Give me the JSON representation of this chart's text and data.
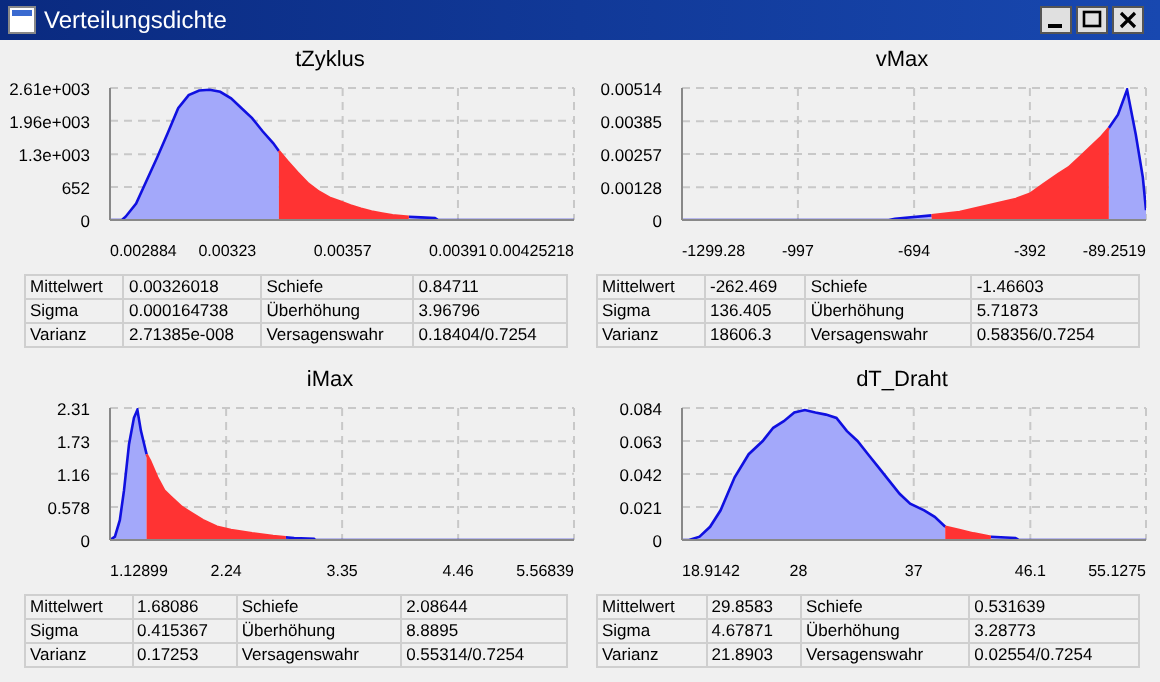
{
  "chart_data": [
    {
      "type": "other",
      "title": "Verteilungsdichte"
    },
    {
      "type": "area",
      "title": "tZyklus",
      "grid": true,
      "x": [
        0.002884,
        0.002919,
        0.00293,
        0.002961,
        0.002992,
        0.003023,
        0.003054,
        0.003085,
        0.003116,
        0.003147,
        0.003178,
        0.003209,
        0.003241,
        0.003272,
        0.003303,
        0.003334,
        0.003365,
        0.003382,
        0.003406,
        0.003437,
        0.003469,
        0.0035,
        0.003531,
        0.003562,
        0.003593,
        0.003624,
        0.003655,
        0.003686,
        0.003717,
        0.003765,
        0.0038,
        0.003842,
        0.003852,
        0.00425218
      ],
      "series": [
        {
          "color": "#a3a8fa",
          "values": [
            0,
            0,
            65,
            325,
            780,
            1235,
            1716,
            2210,
            2470,
            2560,
            2574,
            2535,
            2405,
            2210,
            2015,
            1755,
            1521,
            1365,
            null,
            null,
            null,
            null,
            null,
            null,
            null,
            null,
            null,
            null,
            null,
            65,
            52,
            39,
            0,
            0
          ]
        },
        {
          "color": "#ff3333",
          "values": [
            null,
            null,
            null,
            null,
            null,
            null,
            null,
            null,
            null,
            null,
            null,
            null,
            null,
            null,
            null,
            null,
            null,
            1365,
            1170,
            936,
            715,
            559,
            442,
            364,
            286,
            221,
            169,
            130,
            91,
            65,
            null,
            null,
            null,
            null
          ]
        }
      ],
      "xlim": [
        0.002884,
        0.00425218
      ],
      "xticks": [
        0.002884,
        0.00323,
        0.00357,
        0.00391,
        0.00425218
      ],
      "ylim": [
        0,
        2610
      ],
      "yticks": [
        0,
        652,
        {
          "value": 1300,
          "label": "1.3e+003"
        },
        {
          "value": 1960,
          "label": "1.96e+003"
        },
        {
          "value": 2610,
          "label": "2.61e+003"
        }
      ],
      "annotations": [
        "Mittelwert",
        "0.00326018",
        "Schiefe",
        "0.84711",
        "Sigma",
        "0.000164738",
        "Überhöhung",
        "3.96796",
        "Varianz",
        "2.71385e-008",
        "Versagenswahr",
        "0.18404/0.7254"
      ]
    },
    {
      "type": "area",
      "title": "vMax",
      "grid": true,
      "x": [
        -1299.28,
        -760,
        -743.7,
        -648.4,
        -575.0,
        -501.7,
        -428.3,
        -391.6,
        -355.0,
        -318.3,
        -290.8,
        -263.3,
        -235.8,
        -208.2,
        -186.2,
        -162.4,
        -138.6,
        -115.9,
        -97.5,
        -89.2519
      ],
      "series": [
        {
          "color": "#a3a8fa",
          "values": [
            0,
            0,
            5e-05,
            0.00018,
            null,
            null,
            null,
            null,
            null,
            null,
            null,
            null,
            null,
            null,
            0.00358,
            0.0041,
            0.00507,
            0.00333,
            0.00166,
            0.00038
          ]
        },
        {
          "color": "#ff3333",
          "values": [
            null,
            null,
            null,
            0.00018,
            0.00031,
            0.00056,
            0.00082,
            0.00102,
            0.00141,
            0.00179,
            0.00205,
            0.00243,
            0.00282,
            0.0032,
            0.00358,
            null,
            null,
            null,
            null,
            null
          ]
        }
      ],
      "xlim": [
        -1299.28,
        -89.2519
      ],
      "xticks": [
        -1299.28,
        -997,
        -694,
        -392,
        -89.2519
      ],
      "ylim": [
        0,
        0.00514
      ],
      "yticks": [
        0,
        0.00128,
        0.00257,
        0.00385,
        0.00514
      ],
      "annotations": [
        "Mittelwert",
        "-262.469",
        "Schiefe",
        "-1.46603",
        "Sigma",
        "136.405",
        "Überhöhung",
        "5.71873",
        "Varianz",
        "18606.3",
        "Versagenswahr",
        "0.58356/0.7254"
      ]
    },
    {
      "type": "area",
      "title": "iMax",
      "grid": true,
      "x": [
        1.12899,
        1.176,
        1.223,
        1.263,
        1.311,
        1.358,
        1.391,
        1.425,
        1.479,
        1.512,
        1.58,
        1.647,
        1.714,
        1.815,
        1.916,
        2.017,
        2.151,
        2.286,
        2.488,
        2.689,
        2.811,
        2.891,
        3.08,
        3.093,
        5.56839
      ],
      "series": [
        {
          "color": "#a3a8fa",
          "values": [
            0,
            0.058,
            0.347,
            0.867,
            1.676,
            2.139,
            2.277,
            1.91,
            1.5,
            null,
            null,
            null,
            null,
            null,
            null,
            null,
            null,
            null,
            null,
            null,
            0.046,
            0.035,
            0.023,
            0,
            0
          ]
        },
        {
          "color": "#ff3333",
          "values": [
            null,
            null,
            null,
            null,
            null,
            null,
            null,
            null,
            1.5,
            1.387,
            1.098,
            0.867,
            0.751,
            0.578,
            0.462,
            0.347,
            0.231,
            0.173,
            0.116,
            0.069,
            0.046,
            null,
            null,
            null,
            null
          ]
        }
      ],
      "xlim": [
        1.12899,
        5.56839
      ],
      "xticks": [
        1.12899,
        2.24,
        3.35,
        4.46,
        5.56839
      ],
      "ylim": [
        0,
        2.31
      ],
      "yticks": [
        0,
        0.578,
        1.16,
        1.73,
        2.31
      ],
      "annotations": [
        "Mittelwert",
        "1.68086",
        "Schiefe",
        "2.08644",
        "Sigma",
        "0.415367",
        "Überhöhung",
        "8.8895",
        "Varianz",
        "0.17253",
        "Versagenswahr",
        "0.55314/0.7254"
      ]
    },
    {
      "type": "area",
      "title": "dT_Draht",
      "grid": true,
      "x": [
        18.9142,
        19.462,
        20.284,
        21.106,
        21.927,
        23.023,
        24.119,
        25.215,
        26.036,
        26.858,
        27.68,
        28.502,
        29.323,
        30.145,
        30.967,
        31.789,
        32.611,
        33.432,
        34.254,
        35.076,
        35.898,
        36.72,
        37.815,
        38.637,
        39.459,
        40.555,
        41.65,
        43.02,
        44.937,
        45.211,
        55.1275
      ],
      "series": [
        {
          "color": "#a3a8fa",
          "values": [
            0,
            0,
            0.0021,
            0.0084,
            0.0189,
            0.0399,
            0.0546,
            0.063,
            0.0714,
            0.0756,
            0.0811,
            0.0827,
            0.0811,
            0.0798,
            0.0777,
            0.0693,
            0.063,
            0.0546,
            0.0462,
            0.0378,
            0.0294,
            0.0231,
            0.0189,
            0.0147,
            0.0084,
            null,
            null,
            0.0021,
            0.0013,
            0,
            0
          ]
        },
        {
          "color": "#ff3333",
          "values": [
            null,
            null,
            null,
            null,
            null,
            null,
            null,
            null,
            null,
            null,
            null,
            null,
            null,
            null,
            null,
            null,
            null,
            null,
            null,
            null,
            null,
            null,
            null,
            null,
            0.0084,
            0.0063,
            0.0042,
            0.0021,
            null,
            null,
            null
          ]
        }
      ],
      "xlim": [
        18.9142,
        55.1275
      ],
      "xticks": [
        18.9142,
        28,
        37,
        46.1,
        55.1275
      ],
      "ylim": [
        0,
        0.084
      ],
      "yticks": [
        0,
        0.021,
        0.042,
        0.063,
        0.084
      ],
      "annotations": [
        "Mittelwert",
        "29.8583",
        "Schiefe",
        "0.531639",
        "Sigma",
        "4.67871",
        "Überhöhung",
        "3.28773",
        "Varianz",
        "21.8903",
        "Versagenswahr",
        "0.02554/0.7254"
      ]
    }
  ]
}
